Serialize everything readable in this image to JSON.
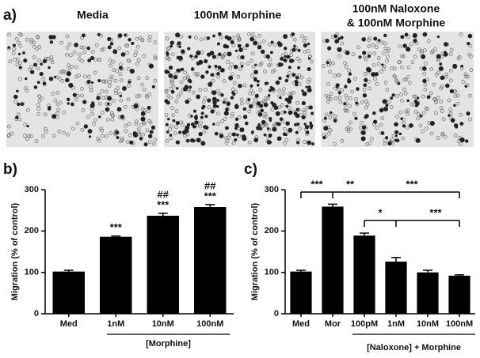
{
  "panel_labels": [
    "a)",
    "b)",
    "c)"
  ],
  "images": [
    {
      "caption": "Media"
    },
    {
      "caption": "100nM Morphine"
    },
    {
      "caption_lines": [
        "100nM Naloxone",
        "& 100nM Morphine"
      ]
    }
  ],
  "chart_data": [
    {
      "type": "bar",
      "y_label": "Migration (% of control)",
      "categories": [
        "Med",
        "1nM",
        "10nM",
        "100nM"
      ],
      "values": [
        102,
        186,
        237,
        258
      ],
      "errors": [
        3,
        2,
        6,
        6
      ],
      "color": "#000000",
      "group_label": "[Morphine]",
      "annotations": [
        "***",
        "***",
        "***",
        "##",
        "##"
      ],
      "ylim": [
        0,
        300
      ],
      "yticks": [
        0,
        100,
        200,
        300
      ]
    },
    {
      "type": "bar",
      "y_label": "Migration (% of control)",
      "categories": [
        "Med",
        "Mor",
        "100pM",
        "1nM",
        "10nM",
        "100nM"
      ],
      "values": [
        102,
        259,
        189,
        126,
        100,
        92
      ],
      "errors": [
        3,
        6,
        6,
        10,
        5,
        2
      ],
      "color": "#000000",
      "group_label": "[Naloxone] + Morphine",
      "annotations": [
        "***",
        "**",
        "***",
        "*",
        "***"
      ],
      "ylim": [
        0,
        300
      ],
      "yticks": [
        0,
        100,
        200,
        300
      ]
    }
  ]
}
